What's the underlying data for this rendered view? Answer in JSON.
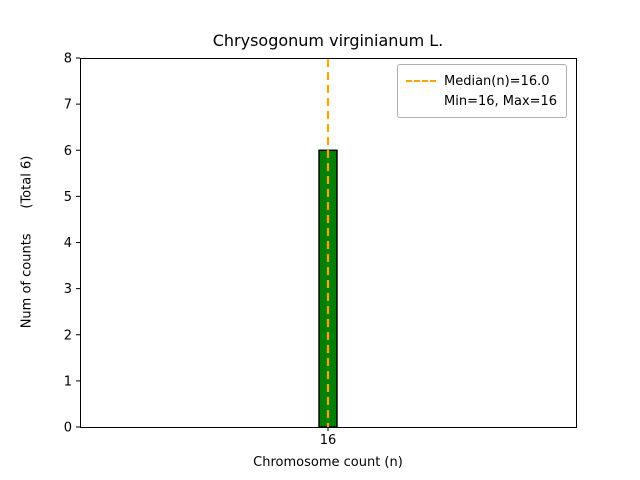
{
  "chart_data": {
    "type": "bar",
    "title": "Chrysogonum virginianum L.",
    "xlabel": "Chromosome count (n)",
    "ylabel": "Num of counts      (Total 6)",
    "categories": [
      "16"
    ],
    "values": [
      6
    ],
    "total_counts": 6,
    "ylim": [
      0,
      8
    ],
    "yticks": [
      0,
      1,
      2,
      3,
      4,
      5,
      6,
      7,
      8
    ],
    "bar_fill_color": "#008000",
    "bar_edge_color": "#000000",
    "median_line": {
      "value": 16.0,
      "color": "#FFA500",
      "style": "dashed"
    },
    "grid": false,
    "legend": {
      "position": "upper-right",
      "entries": [
        {
          "symbol": "dashed-line",
          "color": "#FFA500",
          "label": "Median(n)=16.0"
        },
        {
          "symbol": "none",
          "color": "",
          "label": "Min=16, Max=16"
        }
      ]
    }
  }
}
